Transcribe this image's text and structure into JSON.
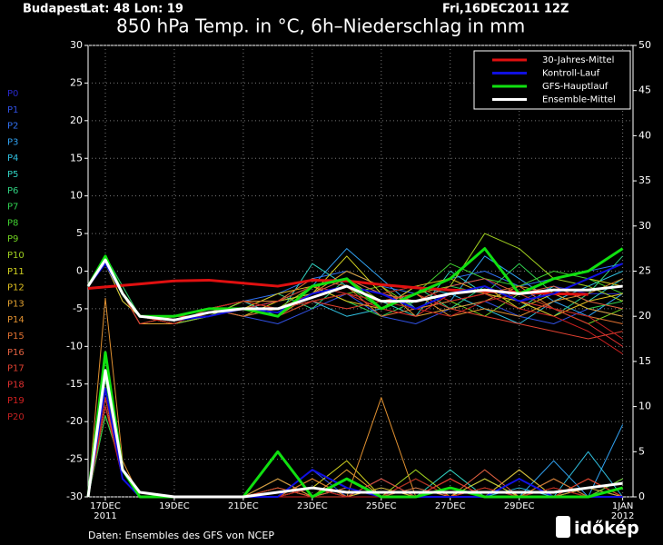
{
  "chart_data": {
    "type": "line",
    "location": "Budapest",
    "coords": "Lat: 48 Lon: 19",
    "date": "Fri,16DEC2011 12Z",
    "title": "850 hPa Temp. in °C, 6h–Niederschlag in mm",
    "source": "Daten: Ensembles des GFS von NCEP",
    "logo": "időkép",
    "x": [
      16.5,
      17,
      17.5,
      18,
      19,
      20,
      21,
      22,
      23,
      24,
      25,
      26,
      27,
      28,
      29,
      30,
      31,
      32
    ],
    "xlim": [
      16.5,
      32.3
    ],
    "xticks": [
      {
        "value": 17,
        "label": "17DEC"
      },
      {
        "value": 19,
        "label": "19DEC"
      },
      {
        "value": 21,
        "label": "21DEC"
      },
      {
        "value": 23,
        "label": "23DEC"
      },
      {
        "value": 25,
        "label": "25DEC"
      },
      {
        "value": 27,
        "label": "27DEC"
      },
      {
        "value": 29,
        "label": "29DEC"
      },
      {
        "value": 32,
        "label": "1JAN"
      }
    ],
    "xtick_years": [
      {
        "value": 17,
        "label": "2011"
      },
      {
        "value": 32,
        "label": "2012"
      }
    ],
    "ylim": [
      -30,
      30
    ],
    "yticks": [
      -30,
      -25,
      -20,
      -15,
      -10,
      -5,
      0,
      5,
      10,
      15,
      20,
      25,
      30
    ],
    "y2lim": [
      0,
      50
    ],
    "y2ticks": [
      0,
      5,
      10,
      15,
      20,
      25,
      30,
      35,
      40,
      45,
      50
    ],
    "grid": true,
    "members": [
      {
        "name": "P0",
        "color": "#2828c8",
        "values": [
          -2,
          1,
          -3,
          -6,
          -7,
          -6,
          -5,
          -4,
          -3,
          -1,
          -3,
          -4,
          -2,
          -1,
          -4,
          -2,
          -3,
          -3
        ],
        "precip": [
          0,
          10,
          3,
          0,
          0,
          0,
          0,
          1,
          0,
          2,
          0,
          0,
          1,
          0,
          0,
          0,
          0,
          0
        ]
      },
      {
        "name": "P1",
        "color": "#3050e0",
        "values": [
          -2,
          2,
          -2,
          -6,
          -6,
          -5,
          -6,
          -7,
          -5,
          -3,
          -6,
          -7,
          -5,
          -4,
          -6,
          -7,
          -5,
          -6
        ],
        "precip": [
          0,
          12,
          2,
          0,
          0,
          0,
          0,
          0,
          3,
          0,
          1,
          0,
          0,
          2,
          0,
          0,
          1,
          0
        ]
      },
      {
        "name": "P2",
        "color": "#3070f0",
        "values": [
          -2,
          1,
          -3,
          -7,
          -7,
          -6,
          -4,
          -3,
          -1,
          0,
          -2,
          -3,
          -1,
          0,
          -2,
          -1,
          0,
          1
        ],
        "precip": [
          0,
          11,
          2,
          0,
          0,
          0,
          0,
          0,
          0,
          1,
          0,
          0,
          0,
          0,
          3,
          0,
          0,
          2
        ]
      },
      {
        "name": "P3",
        "color": "#30a0f0",
        "values": [
          -2,
          2,
          -3,
          -6,
          -6,
          -5,
          -5,
          -4,
          -2,
          3,
          -1,
          -5,
          -4,
          2,
          -1,
          -4,
          -6,
          -3
        ],
        "precip": [
          0,
          9,
          3,
          0,
          0,
          0,
          0,
          0,
          1,
          0,
          0,
          1,
          0,
          0,
          0,
          4,
          0,
          8
        ]
      },
      {
        "name": "P4",
        "color": "#30c0e0",
        "values": [
          -2,
          1,
          -4,
          -6,
          -7,
          -6,
          -5,
          -5,
          -4,
          -6,
          -5,
          -2,
          -3,
          -5,
          -7,
          -4,
          -2,
          0
        ],
        "precip": [
          0,
          12,
          2,
          0,
          0,
          0,
          0,
          0,
          0,
          0,
          2,
          0,
          0,
          0,
          1,
          0,
          5,
          0
        ]
      },
      {
        "name": "P5",
        "color": "#30d0c0",
        "values": [
          -2,
          2,
          -3,
          -6,
          -6,
          -5,
          -4,
          -6,
          1,
          -2,
          -4,
          -6,
          0,
          -3,
          -5,
          -2,
          -4,
          -1
        ],
        "precip": [
          0,
          10,
          3,
          0,
          0,
          0,
          0,
          2,
          0,
          0,
          0,
          0,
          3,
          0,
          0,
          0,
          0,
          1
        ]
      },
      {
        "name": "P6",
        "color": "#30d080",
        "values": [
          -2,
          1,
          -3,
          -6,
          -7,
          -5,
          -5,
          -3,
          -5,
          -1,
          -3,
          -2,
          -5,
          -2,
          -4,
          -6,
          -3,
          2
        ],
        "precip": [
          0,
          11,
          2,
          0,
          0,
          0,
          0,
          0,
          1,
          0,
          0,
          0,
          0,
          1,
          0,
          2,
          0,
          0
        ]
      },
      {
        "name": "P7",
        "color": "#30d050",
        "values": [
          -2,
          2,
          -2,
          -6,
          -6,
          -6,
          -4,
          -4,
          -2,
          -4,
          -6,
          -4,
          -2,
          -3,
          1,
          -3,
          -5,
          -4
        ],
        "precip": [
          0,
          13,
          2,
          0,
          0,
          0,
          0,
          0,
          0,
          2,
          0,
          0,
          0,
          0,
          2,
          0,
          1,
          0
        ]
      },
      {
        "name": "P8",
        "color": "#40d030",
        "values": [
          -2,
          1,
          -3,
          -7,
          -6,
          -5,
          -6,
          -5,
          -3,
          -2,
          -5,
          -3,
          1,
          -1,
          -2,
          0,
          -1,
          -3
        ],
        "precip": [
          0,
          9,
          3,
          0,
          0,
          0,
          0,
          1,
          0,
          0,
          0,
          2,
          0,
          0,
          0,
          1,
          0,
          0
        ]
      },
      {
        "name": "P9",
        "color": "#70d020",
        "values": [
          -2,
          2,
          -3,
          -6,
          -6,
          -5,
          -5,
          -6,
          -4,
          -3,
          -2,
          -5,
          -4,
          -6,
          -3,
          -5,
          -7,
          -5
        ],
        "precip": [
          0,
          12,
          2,
          0,
          0,
          0,
          0,
          0,
          2,
          0,
          0,
          0,
          1,
          0,
          0,
          0,
          0,
          2
        ]
      },
      {
        "name": "P10",
        "color": "#a0d020",
        "values": [
          -2,
          1,
          -3,
          -6,
          -7,
          -6,
          -4,
          -5,
          -2,
          -1,
          -4,
          -3,
          -2,
          5,
          3,
          -1,
          -2,
          -4
        ],
        "precip": [
          0,
          10,
          3,
          0,
          0,
          0,
          0,
          0,
          0,
          1,
          0,
          3,
          0,
          0,
          0,
          0,
          2,
          0
        ]
      },
      {
        "name": "P11",
        "color": "#d0d020",
        "values": [
          -2,
          2,
          -3,
          -6,
          -6,
          -5,
          -6,
          -4,
          -3,
          2,
          -3,
          -4,
          -3,
          -2,
          -5,
          -3,
          -1,
          -2
        ],
        "precip": [
          0,
          11,
          2,
          0,
          0,
          0,
          0,
          0,
          1,
          4,
          0,
          0,
          0,
          2,
          0,
          0,
          0,
          0
        ]
      },
      {
        "name": "P12",
        "color": "#e0c020",
        "values": [
          -2,
          1,
          -4,
          -6,
          -6,
          -5,
          -5,
          -3,
          -2,
          -4,
          -5,
          -2,
          -1,
          -3,
          -4,
          -6,
          -4,
          -3
        ],
        "precip": [
          0,
          12,
          3,
          0,
          0,
          0,
          0,
          0,
          0,
          0,
          1,
          0,
          0,
          0,
          3,
          0,
          0,
          1
        ]
      },
      {
        "name": "P13",
        "color": "#e0a030",
        "values": [
          -2,
          2,
          -3,
          -7,
          -7,
          -5,
          -5,
          -6,
          -3,
          0,
          -2,
          -6,
          -5,
          -4,
          -2,
          -3,
          -5,
          -6
        ],
        "precip": [
          0,
          14,
          3,
          0,
          0,
          0,
          0,
          1,
          0,
          3,
          0,
          0,
          2,
          0,
          0,
          0,
          1,
          0
        ]
      },
      {
        "name": "P14",
        "color": "#e09030",
        "values": [
          -2,
          1,
          -3,
          -6,
          -6,
          -6,
          -5,
          -5,
          -4,
          -3,
          -4,
          -3,
          -6,
          -5,
          -6,
          -4,
          -3,
          -1
        ],
        "precip": [
          0,
          22,
          4,
          0,
          0,
          0,
          0,
          2,
          0,
          0,
          11,
          0,
          0,
          1,
          0,
          0,
          0,
          0
        ]
      },
      {
        "name": "P15",
        "color": "#e07030",
        "values": [
          -2,
          2,
          -3,
          -6,
          -6,
          -5,
          -4,
          -4,
          -1,
          -2,
          -6,
          -5,
          -4,
          -3,
          -2,
          -5,
          -6,
          -7
        ],
        "precip": [
          0,
          12,
          2,
          0,
          0,
          0,
          0,
          0,
          2,
          0,
          0,
          1,
          0,
          0,
          0,
          2,
          0,
          0
        ]
      },
      {
        "name": "P16",
        "color": "#e06040",
        "values": [
          -2,
          1,
          -3,
          -6,
          -7,
          -5,
          -6,
          -5,
          -3,
          -1,
          -3,
          -4,
          -2,
          -1,
          -3,
          -2,
          -4,
          -5
        ],
        "precip": [
          0,
          10,
          3,
          0,
          0,
          0,
          0,
          0,
          0,
          1,
          0,
          0,
          0,
          3,
          0,
          0,
          0,
          1
        ]
      },
      {
        "name": "P17",
        "color": "#e04030",
        "values": [
          -2,
          2,
          -3,
          -6,
          -6,
          -5,
          -5,
          -6,
          -4,
          -5,
          -4,
          -3,
          -5,
          -6,
          -7,
          -8,
          -9,
          -8
        ],
        "precip": [
          0,
          11,
          2,
          0,
          0,
          0,
          0,
          1,
          0,
          0,
          2,
          0,
          0,
          0,
          0,
          1,
          0,
          0
        ]
      },
      {
        "name": "P18",
        "color": "#e03030",
        "values": [
          -2,
          1,
          -3,
          -7,
          -6,
          -6,
          -5,
          -4,
          -2,
          -3,
          -5,
          -6,
          -3,
          -2,
          -4,
          -5,
          -7,
          -10
        ],
        "precip": [
          0,
          12,
          3,
          0,
          0,
          0,
          0,
          0,
          1,
          0,
          0,
          0,
          2,
          0,
          0,
          0,
          2,
          0
        ]
      },
      {
        "name": "P19",
        "color": "#d02020",
        "values": [
          -2,
          2,
          -3,
          -6,
          -6,
          -5,
          -4,
          -5,
          -3,
          -2,
          -3,
          -2,
          -4,
          -3,
          -5,
          -6,
          -8,
          -11
        ],
        "precip": [
          0,
          10,
          2,
          0,
          0,
          0,
          0,
          0,
          0,
          2,
          0,
          0,
          0,
          1,
          0,
          0,
          0,
          1
        ]
      },
      {
        "name": "P20",
        "color": "#c02020",
        "values": [
          -2,
          1,
          -3,
          -6,
          -7,
          -5,
          -5,
          -5,
          -4,
          -3,
          -4,
          -5,
          -6,
          -4,
          -3,
          -5,
          -6,
          -9
        ],
        "precip": [
          0,
          11,
          3,
          0,
          0,
          0,
          0,
          0,
          1,
          0,
          0,
          2,
          0,
          0,
          0,
          1,
          0,
          0
        ]
      }
    ],
    "series": [
      {
        "name": "30-Jahres-Mittel",
        "color": "#e01010",
        "values": [
          -2.3,
          -2.1,
          -1.9,
          -1.7,
          -1.3,
          -1.2,
          -1.6,
          -2,
          -1.2,
          -1.3,
          -1.8,
          -2.2,
          -2.5,
          -2.7,
          -2.8,
          -3,
          -3.1,
          null
        ]
      },
      {
        "name": "Kontroll-Lauf",
        "color": "#1010e0",
        "values": [
          -2,
          1,
          -3,
          -6,
          -6.5,
          -6,
          -5,
          -5.5,
          -3,
          -2,
          -3,
          -5,
          -3,
          -2,
          -4,
          -3,
          -1,
          1
        ],
        "precip": [
          0,
          12,
          2,
          0,
          0,
          0,
          0,
          0,
          3,
          1,
          0,
          0,
          0,
          0,
          2,
          0,
          0,
          0
        ]
      },
      {
        "name": "GFS-Hauptlauf",
        "color": "#10e010",
        "values": [
          -2,
          2,
          -3,
          -6,
          -6,
          -5,
          -5,
          -6,
          -2,
          -1,
          -5,
          -3,
          -1,
          3,
          -3,
          -1,
          0,
          3
        ],
        "precip": [
          0,
          16,
          3,
          0,
          0,
          0,
          0,
          5,
          0,
          2,
          0,
          0,
          1,
          0,
          0,
          0,
          0,
          1
        ]
      },
      {
        "name": "Ensemble-Mittel",
        "color": "#ffffff",
        "values": [
          -2,
          1.5,
          -3,
          -6,
          -6.5,
          -5.5,
          -5,
          -5,
          -3.5,
          -2,
          -4,
          -4,
          -3,
          -2.5,
          -3,
          -2.5,
          -2.5,
          -2
        ],
        "precip": [
          0,
          14,
          3,
          0.5,
          0,
          0,
          0,
          0.5,
          1,
          0.5,
          0.5,
          0.5,
          0.5,
          0.5,
          0.5,
          0.5,
          1,
          1.5
        ]
      }
    ]
  }
}
